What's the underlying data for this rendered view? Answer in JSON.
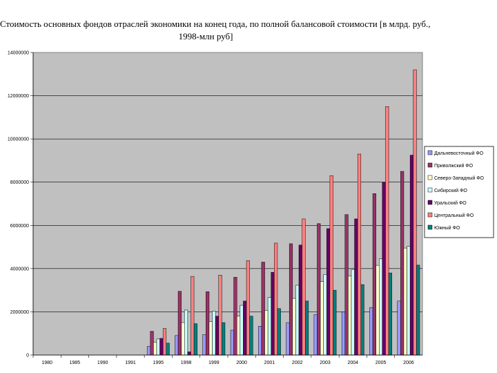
{
  "chart_data": {
    "type": "bar",
    "title_line1": "Стоимость основных фондов отраслей экономики на конец года, по полной балансовой стоимости [в млрд. руб.,",
    "title_line2": "1998-млн руб]",
    "xlabel": "",
    "ylabel": "",
    "ylim": [
      0,
      14000000
    ],
    "yticks": [
      "0",
      "2000000",
      "4000000",
      "6000000",
      "8000000",
      "10000000",
      "12000000",
      "14000000"
    ],
    "grid": true,
    "legend_position": "right",
    "categories": [
      "1980",
      "1985",
      "1990",
      "1991",
      "1995",
      "1998",
      "1999",
      "2000",
      "2001",
      "2002",
      "2003",
      "2004",
      "2005",
      "2006"
    ],
    "series": [
      {
        "name": "Дальневосточный ФО",
        "color": "#9999ff",
        "values": [
          0,
          0,
          0,
          0,
          400000,
          900000,
          950000,
          1150000,
          1330000,
          1500000,
          1870000,
          2000000,
          2200000,
          2500000
        ]
      },
      {
        "name": "Приволжский ФО",
        "color": "#993366",
        "values": [
          0,
          0,
          0,
          0,
          1100000,
          2950000,
          2930000,
          3600000,
          4300000,
          5150000,
          6080000,
          6500000,
          7470000,
          8500000
        ]
      },
      {
        "name": "Северо-Западный ФО",
        "color": "#ffffcc",
        "values": [
          0,
          0,
          0,
          0,
          600000,
          1500000,
          1550000,
          1800000,
          2070000,
          2620000,
          3400000,
          3660000,
          4150000,
          4950000
        ]
      },
      {
        "name": "Сибирский ФО",
        "color": "#ccffff",
        "values": [
          0,
          0,
          0,
          0,
          740000,
          2080000,
          2030000,
          2300000,
          2660000,
          3230000,
          3730000,
          3960000,
          4450000,
          5030000
        ]
      },
      {
        "name": "Уральский ФО",
        "color": "#660066",
        "values": [
          0,
          0,
          0,
          0,
          770000,
          150000,
          1800000,
          2500000,
          3830000,
          5090000,
          5850000,
          6300000,
          7990000,
          9250000
        ]
      },
      {
        "name": "Центральный ФО",
        "color": "#ff8080",
        "values": [
          0,
          0,
          0,
          0,
          1230000,
          3640000,
          3700000,
          4370000,
          5180000,
          6300000,
          8300000,
          9300000,
          11500000,
          13200000
        ]
      },
      {
        "name": "Южный ФО",
        "color": "#008080",
        "values": [
          0,
          0,
          0,
          0,
          550000,
          1450000,
          1500000,
          1800000,
          2150000,
          2500000,
          3000000,
          3260000,
          3800000,
          4160000
        ]
      }
    ]
  }
}
